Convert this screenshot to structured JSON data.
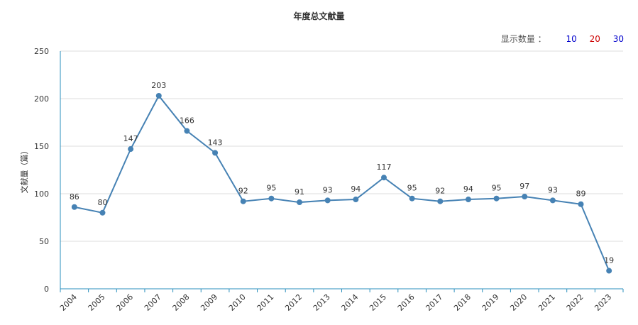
{
  "chart_data": {
    "type": "line",
    "title": "年度总文献量",
    "ylabel": "文献量（篇）",
    "xlabel": "",
    "ylim": [
      0,
      250
    ],
    "y_ticks": [
      0,
      50,
      100,
      150,
      200,
      250
    ],
    "grid": true,
    "categories": [
      "2004",
      "2005",
      "2006",
      "2007",
      "2008",
      "2009",
      "2010",
      "2011",
      "2012",
      "2013",
      "2014",
      "2015",
      "2016",
      "2017",
      "2018",
      "2019",
      "2020",
      "2021",
      "2022",
      "2023"
    ],
    "values": [
      86,
      80,
      147,
      203,
      166,
      143,
      92,
      95,
      91,
      93,
      94,
      117,
      95,
      92,
      94,
      95,
      97,
      93,
      89,
      19
    ],
    "line_color": "#4682b4",
    "axis_color": "#2a8fbd"
  },
  "count_selector": {
    "label": "显示数量 ：",
    "options": [
      {
        "text": "10",
        "color": "#0000cc"
      },
      {
        "text": "20",
        "color": "#cc0000"
      },
      {
        "text": "30",
        "color": "#0000cc"
      }
    ]
  }
}
